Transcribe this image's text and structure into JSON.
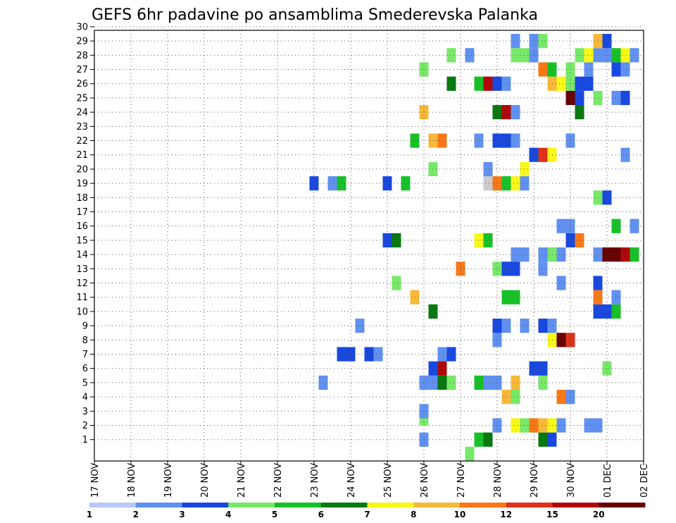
{
  "chart_data": {
    "type": "heatmap",
    "title": "GEFS 6hr padavine po ansamblima Smederevska Palanka",
    "xlabel": "",
    "ylabel": "",
    "x_ticks": [
      "17 NOV",
      "18 NOV",
      "19 NOV",
      "20 NOV",
      "21 NOV",
      "22 NOV",
      "23 NOV",
      "24 NOV",
      "25 NOV",
      "26 NOV",
      "27 NOV",
      "28 NOV",
      "29 NOV",
      "30 NOV",
      "01 DEC",
      "02 DEC"
    ],
    "x_range": [
      "17 NOV 00Z",
      "02 DEC 00Z"
    ],
    "x_step_hours": 6,
    "y_ticks": [
      1,
      2,
      3,
      4,
      5,
      6,
      7,
      8,
      9,
      10,
      11,
      12,
      13,
      14,
      15,
      16,
      17,
      18,
      19,
      20,
      21,
      22,
      23,
      24,
      25,
      26,
      27,
      28,
      29,
      30
    ],
    "y_range": [
      0,
      30
    ],
    "grid": true,
    "legend": {
      "placement": "bottom",
      "labels": [
        "1",
        "2",
        "3",
        "4",
        "5",
        "6",
        "7",
        "8",
        "10",
        "12",
        "15",
        "20"
      ],
      "colors": [
        "#b8c8f8",
        "#6090f0",
        "#1848e0",
        "#78e868",
        "#18c028",
        "#087810",
        "#f8f818",
        "#f8b838",
        "#f87818",
        "#e03018",
        "#b00808",
        "#680000"
      ]
    },
    "cells": [
      [
        26,
        1,
        1
      ],
      [
        26,
        2.5,
        3
      ],
      [
        26,
        3,
        1
      ],
      [
        27.5,
        1,
        4
      ],
      [
        27.75,
        1,
        5
      ],
      [
        29.25,
        1,
        5
      ],
      [
        29.5,
        1,
        2
      ],
      [
        28,
        2,
        1
      ],
      [
        28.5,
        2,
        6
      ],
      [
        28.75,
        2,
        3
      ],
      [
        29,
        2,
        8
      ],
      [
        29.25,
        2,
        7
      ],
      [
        29.5,
        2,
        6
      ],
      [
        29.75,
        2,
        1
      ],
      [
        30.5,
        2,
        1
      ],
      [
        30.75,
        2,
        1
      ],
      [
        28.25,
        4,
        7
      ],
      [
        28.5,
        4,
        3
      ],
      [
        29.75,
        4,
        8
      ],
      [
        30,
        4,
        1
      ],
      [
        23.25,
        5,
        1
      ],
      [
        26,
        5,
        1
      ],
      [
        26.25,
        5,
        1
      ],
      [
        26.5,
        5,
        5
      ],
      [
        26.75,
        5,
        3
      ],
      [
        27.5,
        5,
        4
      ],
      [
        27.75,
        5,
        1
      ],
      [
        28,
        5,
        1
      ],
      [
        28.5,
        5,
        7
      ],
      [
        29.25,
        5,
        3
      ],
      [
        26.25,
        6,
        2
      ],
      [
        26.5,
        6,
        10
      ],
      [
        29,
        6,
        2
      ],
      [
        29.25,
        6,
        2
      ],
      [
        31,
        6,
        3
      ],
      [
        23.75,
        7,
        2
      ],
      [
        24,
        7,
        2
      ],
      [
        24.5,
        7,
        2
      ],
      [
        24.75,
        7,
        1
      ],
      [
        26.5,
        7,
        1
      ],
      [
        26.75,
        7,
        2
      ],
      [
        28,
        8,
        1
      ],
      [
        29.5,
        8,
        6
      ],
      [
        29.75,
        8,
        11
      ],
      [
        30,
        8,
        9
      ],
      [
        24.25,
        9,
        1
      ],
      [
        28,
        9,
        2
      ],
      [
        28.25,
        9,
        1
      ],
      [
        28.75,
        9,
        1
      ],
      [
        29.25,
        9,
        2
      ],
      [
        29.5,
        9,
        1
      ],
      [
        26.25,
        10,
        5
      ],
      [
        30.75,
        10,
        2
      ],
      [
        31,
        10,
        2
      ],
      [
        31.25,
        10,
        4
      ],
      [
        25.75,
        11,
        7
      ],
      [
        28.25,
        11,
        4
      ],
      [
        28.5,
        11,
        4
      ],
      [
        30.75,
        11,
        8
      ],
      [
        31.25,
        11,
        1
      ],
      [
        25.25,
        12,
        3
      ],
      [
        29.75,
        12,
        1
      ],
      [
        30.75,
        12,
        2
      ],
      [
        27,
        13,
        8
      ],
      [
        28,
        13,
        3
      ],
      [
        28.25,
        13,
        2
      ],
      [
        28.5,
        13,
        2
      ],
      [
        29.25,
        13,
        1
      ],
      [
        28.5,
        14,
        1
      ],
      [
        28.75,
        14,
        1
      ],
      [
        29.25,
        14,
        1
      ],
      [
        29.5,
        14,
        3
      ],
      [
        29.75,
        14,
        1
      ],
      [
        30.75,
        14,
        1
      ],
      [
        31,
        14,
        11
      ],
      [
        31.25,
        14,
        11
      ],
      [
        31.5,
        14,
        10
      ],
      [
        31.75,
        14,
        4
      ],
      [
        25,
        15,
        2
      ],
      [
        25.25,
        15,
        5
      ],
      [
        27.5,
        15,
        6
      ],
      [
        27.75,
        15,
        4
      ],
      [
        30,
        15,
        2
      ],
      [
        30.25,
        15,
        8
      ],
      [
        29.75,
        16,
        1
      ],
      [
        30,
        16,
        1
      ],
      [
        31.25,
        16,
        4
      ],
      [
        31.75,
        16,
        1
      ],
      [
        30.75,
        18,
        3
      ],
      [
        31,
        18,
        2
      ],
      [
        23,
        19,
        2
      ],
      [
        23.5,
        19,
        1
      ],
      [
        23.75,
        19,
        4
      ],
      [
        25,
        19,
        2
      ],
      [
        25.5,
        19,
        4
      ],
      [
        27.75,
        19,
        12
      ],
      [
        28,
        19,
        8
      ],
      [
        28.25,
        19,
        4
      ],
      [
        28.5,
        19,
        6
      ],
      [
        28.75,
        19,
        1
      ],
      [
        26.25,
        20,
        3
      ],
      [
        27.75,
        20,
        1
      ],
      [
        28.75,
        20,
        6
      ],
      [
        29,
        21,
        2
      ],
      [
        29.25,
        21,
        9
      ],
      [
        29.5,
        21,
        6
      ],
      [
        31.5,
        21,
        1
      ],
      [
        25.75,
        22,
        4
      ],
      [
        26.25,
        22,
        7
      ],
      [
        26.5,
        22,
        8
      ],
      [
        27.5,
        22,
        1
      ],
      [
        28,
        22,
        2
      ],
      [
        28.25,
        22,
        2
      ],
      [
        28.5,
        22,
        1
      ],
      [
        30,
        22,
        1
      ],
      [
        26,
        24,
        7
      ],
      [
        28,
        24,
        5
      ],
      [
        28.25,
        24,
        10
      ],
      [
        28.5,
        24,
        1
      ],
      [
        30.25,
        24,
        5
      ],
      [
        30,
        25,
        11
      ],
      [
        30.25,
        25,
        2
      ],
      [
        30.75,
        25,
        3
      ],
      [
        31.25,
        25,
        1
      ],
      [
        31.5,
        25,
        2
      ],
      [
        26.75,
        26,
        5
      ],
      [
        27.5,
        26,
        4
      ],
      [
        27.75,
        26,
        10
      ],
      [
        28,
        26,
        2
      ],
      [
        28.25,
        26,
        1
      ],
      [
        29.5,
        26,
        7
      ],
      [
        29.75,
        26,
        6
      ],
      [
        30,
        26,
        3
      ],
      [
        30.25,
        26,
        2
      ],
      [
        30.5,
        26,
        2
      ],
      [
        26,
        27,
        3
      ],
      [
        29.25,
        27,
        8
      ],
      [
        29.5,
        27,
        4
      ],
      [
        30,
        27,
        3
      ],
      [
        30.5,
        27,
        1
      ],
      [
        31.25,
        27,
        2
      ],
      [
        31.5,
        27,
        1
      ],
      [
        26.75,
        28,
        3
      ],
      [
        27.25,
        28,
        1
      ],
      [
        28.5,
        28,
        3
      ],
      [
        28.75,
        28,
        3
      ],
      [
        29,
        28,
        1
      ],
      [
        30.25,
        28,
        3
      ],
      [
        30.5,
        28,
        6
      ],
      [
        30.75,
        28,
        1
      ],
      [
        31,
        28,
        1
      ],
      [
        31.25,
        28,
        4
      ],
      [
        31.5,
        28,
        6
      ],
      [
        31.75,
        28,
        1
      ],
      [
        28.5,
        29,
        1
      ],
      [
        29,
        29,
        1
      ],
      [
        29.25,
        29,
        3
      ],
      [
        30.75,
        29,
        7
      ],
      [
        31,
        29,
        2
      ],
      [
        27.25,
        0,
        3
      ]
    ]
  }
}
